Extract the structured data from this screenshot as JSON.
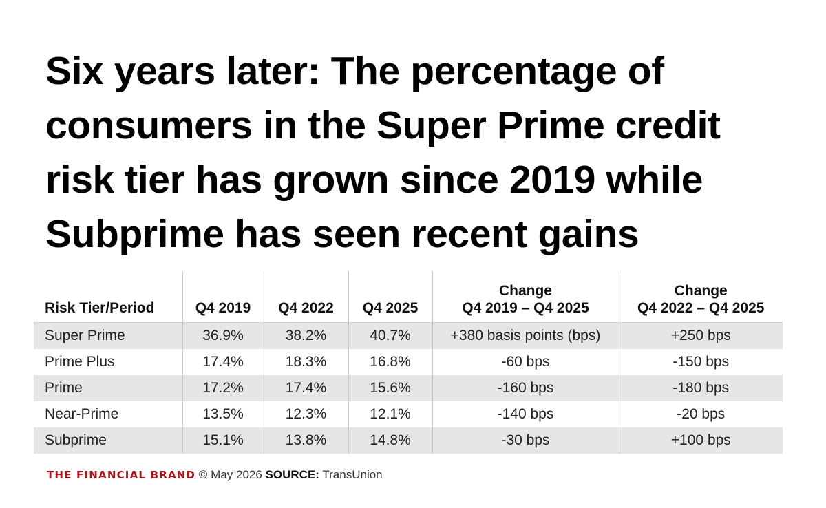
{
  "title_lines": [
    "Six years later: The percentage of",
    "consumers in the Super Prime credit",
    "risk tier has grown since 2019 while",
    "Subprime has seen recent gains"
  ],
  "chart_data": {
    "type": "table",
    "title": "Six years later: The percentage of consumers in the Super Prime credit risk tier has grown since 2019 while Subprime has seen recent gains",
    "columns": [
      {
        "top": "",
        "bottom": "Risk Tier/Period"
      },
      {
        "top": "",
        "bottom": "Q4 2019"
      },
      {
        "top": "",
        "bottom": "Q4 2022"
      },
      {
        "top": "",
        "bottom": "Q4 2025"
      },
      {
        "top": "Change",
        "bottom": "Q4 2019 – Q4 2025"
      },
      {
        "top": "Change",
        "bottom": "Q4 2022 – Q4 2025"
      }
    ],
    "rows": [
      [
        "Super Prime",
        "36.9%",
        "38.2%",
        "40.7%",
        "+380 basis points (bps)",
        "+250 bps"
      ],
      [
        "Prime Plus",
        "17.4%",
        "18.3%",
        "16.8%",
        "-60 bps",
        "-150 bps"
      ],
      [
        "Prime",
        "17.2%",
        "17.4%",
        "15.6%",
        "-160 bps",
        "-180 bps"
      ],
      [
        "Near-Prime",
        "13.5%",
        "12.3%",
        "12.1%",
        "-140 bps",
        "-20 bps"
      ],
      [
        "Subprime",
        "15.1%",
        "13.8%",
        "14.8%",
        "-30 bps",
        "+100 bps"
      ]
    ]
  },
  "footer": {
    "brand": "THE FINANCIAL BRAND",
    "date": "© May 2026",
    "source_label": "SOURCE:",
    "source": "TransUnion"
  },
  "colors": {
    "brand": "#a8141c",
    "row_shade": "#e6e6e6",
    "divider": "#c9c9c9"
  }
}
